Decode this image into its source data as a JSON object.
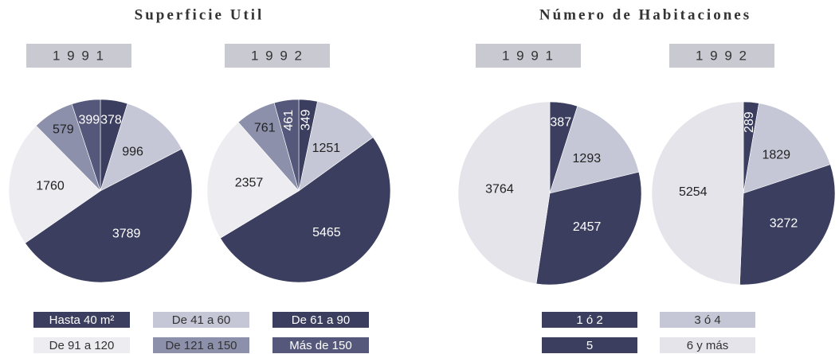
{
  "chart_data": [
    {
      "type": "pie",
      "title": "Superficie Util",
      "categories": [
        "Hasta 40 m²",
        "De 41 a 60",
        "De 61 a 90",
        "De 91 a 120",
        "De 121 a 150",
        "Más de 150"
      ],
      "colors": [
        "#3b3e5e",
        "#c5c7d6",
        "#3b3e5e",
        "#ececf1",
        "#8d90ab",
        "#55587a"
      ],
      "series": [
        {
          "name": "1 9 9 1",
          "values": [
            378,
            996,
            3789,
            1760,
            579,
            399
          ]
        },
        {
          "name": "1 9 9 2",
          "values": [
            349,
            1251,
            5465,
            2357,
            761,
            461
          ]
        }
      ]
    },
    {
      "type": "pie",
      "title": "Número de Habitaciones",
      "categories": [
        "1 ó 2",
        "3 ó 4",
        "5",
        "6 y más"
      ],
      "colors": [
        "#3b3e5e",
        "#c5c7d6",
        "#3b3e5e",
        "#e4e4ea"
      ],
      "series": [
        {
          "name": "1 9 9 1",
          "values": [
            387,
            1293,
            2457,
            3764
          ]
        },
        {
          "name": "1 9 9 2",
          "values": [
            289,
            1829,
            3272,
            5254
          ]
        }
      ]
    }
  ]
}
